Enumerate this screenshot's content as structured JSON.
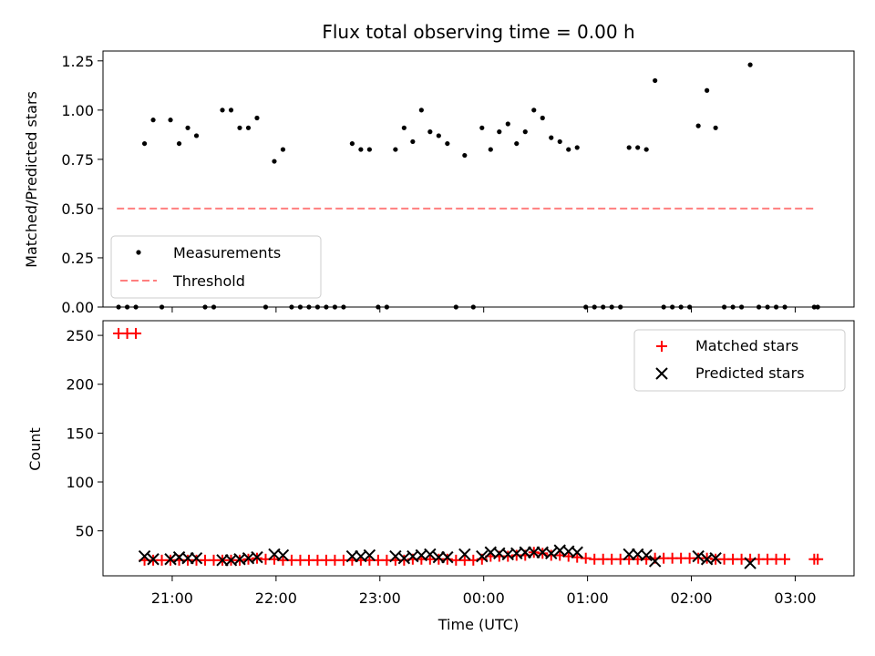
{
  "chart_data": [
    {
      "type": "scatter",
      "title": "Flux total observing time = 0.00 h",
      "xlabel": "",
      "ylabel": "Matched/Predicted stars",
      "xlim": [
        "20:20",
        "03:34"
      ],
      "ylim": [
        0,
        1.3
      ],
      "yticks": [
        "0.00",
        "0.25",
        "0.50",
        "0.75",
        "1.00",
        "1.25"
      ],
      "legend": {
        "position": "lower-left",
        "entries": [
          "Measurements",
          "Threshold"
        ]
      },
      "threshold": {
        "name": "Threshold",
        "value": 0.5,
        "x_start": "20:28",
        "x_end": "03:12",
        "color": "#ff7f7f"
      },
      "series": [
        {
          "name": "Measurements",
          "color": "#000000",
          "points": [
            [
              "20:29",
              0
            ],
            [
              "20:34",
              0
            ],
            [
              "20:39",
              0
            ],
            [
              "20:44",
              0.83
            ],
            [
              "20:49",
              0.95
            ],
            [
              "20:54",
              0
            ],
            [
              "20:59",
              0.95
            ],
            [
              "21:04",
              0.83
            ],
            [
              "21:09",
              0.91
            ],
            [
              "21:14",
              0.87
            ],
            [
              "21:19",
              0
            ],
            [
              "21:24",
              0
            ],
            [
              "21:29",
              1.0
            ],
            [
              "21:34",
              1.0
            ],
            [
              "21:39",
              0.91
            ],
            [
              "21:44",
              0.91
            ],
            [
              "21:49",
              0.96
            ],
            [
              "21:54",
              0
            ],
            [
              "21:59",
              0.74
            ],
            [
              "22:04",
              0.8
            ],
            [
              "22:09",
              0
            ],
            [
              "22:14",
              0
            ],
            [
              "22:19",
              0
            ],
            [
              "22:24",
              0
            ],
            [
              "22:29",
              0
            ],
            [
              "22:34",
              0
            ],
            [
              "22:39",
              0
            ],
            [
              "22:44",
              0.83
            ],
            [
              "22:49",
              0.8
            ],
            [
              "22:54",
              0.8
            ],
            [
              "22:59",
              0
            ],
            [
              "23:04",
              0
            ],
            [
              "23:09",
              0.8
            ],
            [
              "23:14",
              0.91
            ],
            [
              "23:19",
              0.84
            ],
            [
              "23:24",
              1.0
            ],
            [
              "23:29",
              0.89
            ],
            [
              "23:34",
              0.87
            ],
            [
              "23:39",
              0.83
            ],
            [
              "23:44",
              0
            ],
            [
              "23:49",
              0.77
            ],
            [
              "23:54",
              0
            ],
            [
              "23:59",
              0.91
            ],
            [
              "00:04",
              0.8
            ],
            [
              "00:09",
              0.89
            ],
            [
              "00:14",
              0.93
            ],
            [
              "00:19",
              0.83
            ],
            [
              "00:24",
              0.89
            ],
            [
              "00:29",
              1.0
            ],
            [
              "00:34",
              0.96
            ],
            [
              "00:39",
              0.86
            ],
            [
              "00:44",
              0.84
            ],
            [
              "00:49",
              0.8
            ],
            [
              "00:54",
              0.81
            ],
            [
              "00:59",
              0
            ],
            [
              "01:04",
              0
            ],
            [
              "01:09",
              0
            ],
            [
              "01:14",
              0
            ],
            [
              "01:19",
              0
            ],
            [
              "01:24",
              0.81
            ],
            [
              "01:29",
              0.81
            ],
            [
              "01:34",
              0.8
            ],
            [
              "01:39",
              1.15
            ],
            [
              "01:44",
              0
            ],
            [
              "01:49",
              0
            ],
            [
              "01:54",
              0
            ],
            [
              "01:59",
              0
            ],
            [
              "02:04",
              0.92
            ],
            [
              "02:09",
              1.1
            ],
            [
              "02:14",
              0.91
            ],
            [
              "02:19",
              0
            ],
            [
              "02:24",
              0
            ],
            [
              "02:29",
              0
            ],
            [
              "02:34",
              1.23
            ],
            [
              "02:39",
              0
            ],
            [
              "02:44",
              0
            ],
            [
              "02:49",
              0
            ],
            [
              "02:54",
              0
            ],
            [
              "03:11",
              0
            ],
            [
              "03:13",
              0
            ]
          ]
        }
      ]
    },
    {
      "type": "scatter",
      "title": "",
      "xlabel": "Time (UTC)",
      "ylabel": "Count",
      "xlim": [
        "20:20",
        "03:34"
      ],
      "ylim": [
        4,
        265
      ],
      "yticks": [
        "50",
        "100",
        "150",
        "200",
        "250"
      ],
      "xticks": [
        "21:00",
        "22:00",
        "23:00",
        "00:00",
        "01:00",
        "02:00",
        "03:00"
      ],
      "legend": {
        "position": "upper-right",
        "entries": [
          "Matched stars",
          "Predicted stars"
        ]
      },
      "series": [
        {
          "name": "Matched stars",
          "marker": "plus",
          "color": "#ff0000",
          "points": [
            [
              "20:29",
              252
            ],
            [
              "20:34",
              252
            ],
            [
              "20:39",
              252
            ],
            [
              "20:44",
              20
            ],
            [
              "20:49",
              20
            ],
            [
              "20:54",
              20
            ],
            [
              "20:59",
              20
            ],
            [
              "21:04",
              20
            ],
            [
              "21:09",
              20
            ],
            [
              "21:14",
              20
            ],
            [
              "21:19",
              20
            ],
            [
              "21:24",
              20
            ],
            [
              "21:29",
              20
            ],
            [
              "21:34",
              20
            ],
            [
              "21:39",
              20
            ],
            [
              "21:44",
              21
            ],
            [
              "21:49",
              22
            ],
            [
              "21:54",
              21
            ],
            [
              "21:59",
              21
            ],
            [
              "22:04",
              20
            ],
            [
              "22:09",
              20
            ],
            [
              "22:14",
              20
            ],
            [
              "22:19",
              20
            ],
            [
              "22:24",
              20
            ],
            [
              "22:29",
              20
            ],
            [
              "22:34",
              20
            ],
            [
              "22:39",
              20
            ],
            [
              "22:44",
              20
            ],
            [
              "22:49",
              20
            ],
            [
              "22:54",
              20
            ],
            [
              "22:59",
              20
            ],
            [
              "23:04",
              20
            ],
            [
              "23:09",
              20
            ],
            [
              "23:14",
              20
            ],
            [
              "23:19",
              21
            ],
            [
              "23:24",
              21
            ],
            [
              "23:29",
              21
            ],
            [
              "23:34",
              21
            ],
            [
              "23:39",
              21
            ],
            [
              "23:44",
              20
            ],
            [
              "23:49",
              20
            ],
            [
              "23:54",
              20
            ],
            [
              "23:59",
              21
            ],
            [
              "00:04",
              24
            ],
            [
              "00:09",
              24
            ],
            [
              "00:14",
              24
            ],
            [
              "00:19",
              25
            ],
            [
              "00:24",
              25
            ],
            [
              "00:29",
              28
            ],
            [
              "00:34",
              27
            ],
            [
              "00:39",
              25
            ],
            [
              "00:44",
              25
            ],
            [
              "00:49",
              24
            ],
            [
              "00:54",
              23
            ],
            [
              "00:59",
              22
            ],
            [
              "01:04",
              21
            ],
            [
              "01:09",
              21
            ],
            [
              "01:14",
              21
            ],
            [
              "01:19",
              21
            ],
            [
              "01:24",
              21
            ],
            [
              "01:29",
              21
            ],
            [
              "01:34",
              21
            ],
            [
              "01:39",
              22
            ],
            [
              "01:44",
              22
            ],
            [
              "01:49",
              22
            ],
            [
              "01:54",
              22
            ],
            [
              "01:59",
              22
            ],
            [
              "02:04",
              22
            ],
            [
              "02:09",
              22
            ],
            [
              "02:14",
              21
            ],
            [
              "02:19",
              21
            ],
            [
              "02:24",
              21
            ],
            [
              "02:29",
              21
            ],
            [
              "02:34",
              21
            ],
            [
              "02:39",
              21
            ],
            [
              "02:44",
              21
            ],
            [
              "02:49",
              21
            ],
            [
              "02:54",
              21
            ],
            [
              "03:11",
              21
            ],
            [
              "03:13",
              21
            ]
          ]
        },
        {
          "name": "Predicted stars",
          "marker": "x",
          "color": "#000000",
          "points": [
            [
              "20:44",
              24
            ],
            [
              "20:49",
              21
            ],
            [
              "20:59",
              21
            ],
            [
              "21:04",
              23
            ],
            [
              "21:09",
              22
            ],
            [
              "21:14",
              22
            ],
            [
              "21:29",
              20
            ],
            [
              "21:34",
              20
            ],
            [
              "21:39",
              21
            ],
            [
              "21:44",
              22
            ],
            [
              "21:49",
              23
            ],
            [
              "21:59",
              26
            ],
            [
              "22:04",
              25
            ],
            [
              "22:44",
              24
            ],
            [
              "22:49",
              24
            ],
            [
              "22:54",
              25
            ],
            [
              "23:09",
              24
            ],
            [
              "23:14",
              22
            ],
            [
              "23:19",
              24
            ],
            [
              "23:24",
              25
            ],
            [
              "23:29",
              26
            ],
            [
              "23:34",
              23
            ],
            [
              "23:39",
              23
            ],
            [
              "23:49",
              26
            ],
            [
              "23:59",
              24
            ],
            [
              "00:04",
              28
            ],
            [
              "00:09",
              27
            ],
            [
              "00:14",
              26
            ],
            [
              "00:19",
              27
            ],
            [
              "00:24",
              28
            ],
            [
              "00:29",
              28
            ],
            [
              "00:34",
              28
            ],
            [
              "00:39",
              27
            ],
            [
              "00:44",
              30
            ],
            [
              "00:49",
              29
            ],
            [
              "00:54",
              28
            ],
            [
              "01:24",
              26
            ],
            [
              "01:29",
              26
            ],
            [
              "01:34",
              25
            ],
            [
              "01:39",
              19
            ],
            [
              "02:04",
              24
            ],
            [
              "02:09",
              21
            ],
            [
              "02:14",
              22
            ],
            [
              "02:34",
              17
            ]
          ]
        }
      ]
    }
  ]
}
